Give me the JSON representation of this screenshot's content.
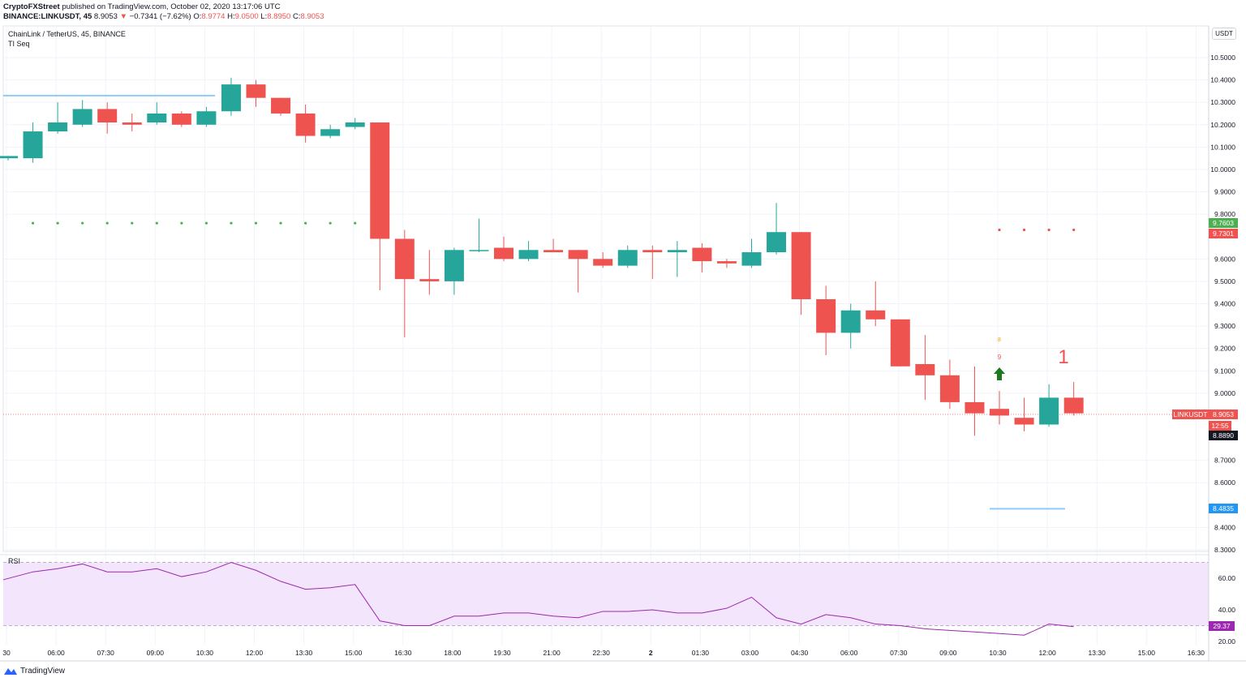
{
  "header": {
    "publisher": "CryptoFXStreet",
    "published_text": " published on TradingView.com, October 02, 2020 13:17:06 UTC",
    "ticker_line": "BINANCE:LINKUSDT, 45",
    "last_price": "8.9053",
    "change_arrow": "▼",
    "change": "−0.7341 (−7.62%)",
    "o_label": "O:",
    "o_value": "8.9774",
    "h_label": "H:",
    "h_value": "9.0500",
    "l_label": "L:",
    "l_value": "8.8950",
    "c_label": "C:",
    "c_value": "8.9053"
  },
  "symbol_title": "ChainLink / TetherUS, 45, BINANCE",
  "indicator_title": "TI Seq",
  "rsi_title": "RSI",
  "currency_label": "USDT",
  "branding": "TradingView",
  "price_tags": {
    "green_level": "9.7603",
    "red_level": "9.7301",
    "current_label": "LINKUSDT",
    "current_price": "8.9053",
    "countdown": "12:55",
    "crosshair": "8.8890",
    "blue_level": "8.4835",
    "rsi_value": "29.37"
  },
  "colors": {
    "up": "#26a69a",
    "down": "#ef5350",
    "rsi_line": "#9c27b0",
    "rsi_band": "#f3e5fc",
    "green_dots": "#4caf50",
    "level_blue": "#90caf9",
    "tag_blue": "#2196f3"
  },
  "annotations": {
    "seq_count_top": "8",
    "seq_count": "9",
    "big_count": "1"
  },
  "chart_data": {
    "type": "candlestick",
    "title": "ChainLink / TetherUS, 45, BINANCE",
    "interval": "45",
    "y_range": [
      8.3,
      10.6
    ],
    "y_ticks": [
      "10.5000",
      "10.4000",
      "10.3000",
      "10.2000",
      "10.1000",
      "10.0000",
      "9.9000",
      "9.8000",
      "9.6000",
      "9.5000",
      "9.4000",
      "9.3000",
      "9.2000",
      "9.1000",
      "9.0000",
      "8.7000",
      "8.6000",
      "8.4000",
      "8.3000"
    ],
    "x_ticks": [
      "30",
      "06:00",
      "07:30",
      "09:00",
      "10:30",
      "12:00",
      "13:30",
      "15:00",
      "16:30",
      "18:00",
      "19:30",
      "21:00",
      "22:30",
      "2",
      "01:30",
      "03:00",
      "04:30",
      "06:00",
      "07:30",
      "09:00",
      "10:30",
      "12:00",
      "13:30",
      "15:00",
      "16:30"
    ],
    "candles": [
      {
        "o": 10.05,
        "h": 10.06,
        "l": 10.04,
        "c": 10.06
      },
      {
        "o": 10.05,
        "h": 10.21,
        "l": 10.03,
        "c": 10.17
      },
      {
        "o": 10.17,
        "h": 10.3,
        "l": 10.16,
        "c": 10.21
      },
      {
        "o": 10.2,
        "h": 10.31,
        "l": 10.19,
        "c": 10.27
      },
      {
        "o": 10.27,
        "h": 10.3,
        "l": 10.16,
        "c": 10.21
      },
      {
        "o": 10.21,
        "h": 10.25,
        "l": 10.17,
        "c": 10.2
      },
      {
        "o": 10.21,
        "h": 10.3,
        "l": 10.2,
        "c": 10.25
      },
      {
        "o": 10.25,
        "h": 10.26,
        "l": 10.19,
        "c": 10.2
      },
      {
        "o": 10.2,
        "h": 10.28,
        "l": 10.19,
        "c": 10.26
      },
      {
        "o": 10.26,
        "h": 10.41,
        "l": 10.24,
        "c": 10.38
      },
      {
        "o": 10.38,
        "h": 10.4,
        "l": 10.28,
        "c": 10.32
      },
      {
        "o": 10.32,
        "h": 10.32,
        "l": 10.24,
        "c": 10.25
      },
      {
        "o": 10.25,
        "h": 10.29,
        "l": 10.12,
        "c": 10.15
      },
      {
        "o": 10.15,
        "h": 10.2,
        "l": 10.14,
        "c": 10.18
      },
      {
        "o": 10.19,
        "h": 10.23,
        "l": 10.18,
        "c": 10.21
      },
      {
        "o": 10.21,
        "h": 10.21,
        "l": 9.46,
        "c": 9.69
      },
      {
        "o": 9.69,
        "h": 9.73,
        "l": 9.25,
        "c": 9.51
      },
      {
        "o": 9.51,
        "h": 9.64,
        "l": 9.44,
        "c": 9.5
      },
      {
        "o": 9.5,
        "h": 9.65,
        "l": 9.44,
        "c": 9.64
      },
      {
        "o": 9.64,
        "h": 9.78,
        "l": 9.63,
        "c": 9.64
      },
      {
        "o": 9.65,
        "h": 9.7,
        "l": 9.59,
        "c": 9.6
      },
      {
        "o": 9.6,
        "h": 9.68,
        "l": 9.59,
        "c": 9.64
      },
      {
        "o": 9.64,
        "h": 9.69,
        "l": 9.63,
        "c": 9.63
      },
      {
        "o": 9.64,
        "h": 9.64,
        "l": 9.45,
        "c": 9.6
      },
      {
        "o": 9.6,
        "h": 9.63,
        "l": 9.56,
        "c": 9.57
      },
      {
        "o": 9.57,
        "h": 9.66,
        "l": 9.56,
        "c": 9.64
      },
      {
        "o": 9.64,
        "h": 9.66,
        "l": 9.51,
        "c": 9.63
      },
      {
        "o": 9.63,
        "h": 9.68,
        "l": 9.52,
        "c": 9.64
      },
      {
        "o": 9.65,
        "h": 9.67,
        "l": 9.54,
        "c": 9.59
      },
      {
        "o": 9.59,
        "h": 9.6,
        "l": 9.56,
        "c": 9.58
      },
      {
        "o": 9.57,
        "h": 9.69,
        "l": 9.56,
        "c": 9.63
      },
      {
        "o": 9.63,
        "h": 9.85,
        "l": 9.62,
        "c": 9.72
      },
      {
        "o": 9.72,
        "h": 9.72,
        "l": 9.35,
        "c": 9.42
      },
      {
        "o": 9.42,
        "h": 9.48,
        "l": 9.17,
        "c": 9.27
      },
      {
        "o": 9.27,
        "h": 9.4,
        "l": 9.2,
        "c": 9.37
      },
      {
        "o": 9.37,
        "h": 9.5,
        "l": 9.3,
        "c": 9.33
      },
      {
        "o": 9.33,
        "h": 9.33,
        "l": 9.12,
        "c": 9.12
      },
      {
        "o": 9.13,
        "h": 9.26,
        "l": 8.97,
        "c": 9.08
      },
      {
        "o": 9.08,
        "h": 9.15,
        "l": 8.93,
        "c": 8.96
      },
      {
        "o": 8.96,
        "h": 9.12,
        "l": 8.81,
        "c": 8.91
      },
      {
        "o": 8.93,
        "h": 9.01,
        "l": 8.86,
        "c": 8.9
      },
      {
        "o": 8.89,
        "h": 8.98,
        "l": 8.83,
        "c": 8.86
      },
      {
        "o": 8.86,
        "h": 9.04,
        "l": 8.85,
        "c": 8.98
      },
      {
        "o": 8.98,
        "h": 9.05,
        "l": 8.9,
        "c": 8.91
      }
    ],
    "rsi": {
      "label": "RSI",
      "ticks": [
        "60.00",
        "40.00",
        "20.00"
      ],
      "upper_band": 70,
      "lower_band": 30,
      "range": [
        18,
        72
      ],
      "values": [
        59,
        64,
        66,
        69,
        64,
        64,
        66,
        61,
        64,
        70,
        65,
        58,
        53,
        54,
        56,
        33,
        30,
        30,
        36,
        36,
        38,
        38,
        36,
        35,
        39,
        39,
        40,
        38,
        38,
        41,
        48,
        35,
        31,
        37,
        35,
        31,
        30,
        28,
        27,
        26,
        25,
        24,
        31,
        29.37
      ]
    },
    "levels": {
      "resistance_blue": 10.33,
      "green_dots": 9.76,
      "red_dots": 9.73,
      "support_blue": 8.4835,
      "current": 8.9053
    }
  }
}
